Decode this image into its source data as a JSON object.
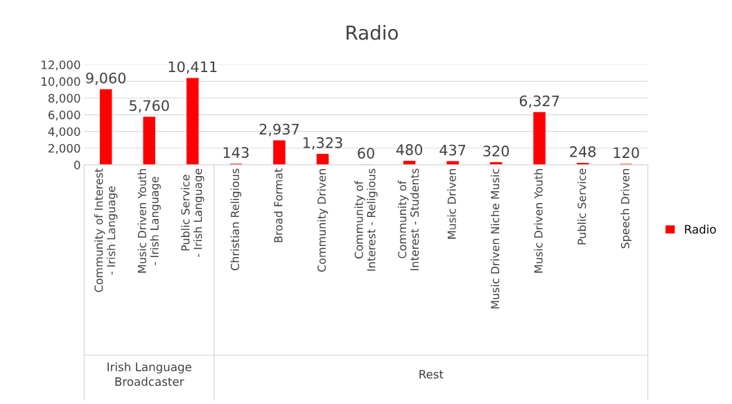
{
  "chart_data": {
    "type": "bar",
    "title": "Radio",
    "categories": [
      "Community of Interest - Irish Language",
      "Music Driven Youth - Irish Language",
      "Public Service - Irish Language",
      "Christian Religious",
      "Broad Format",
      "Community Driven",
      "Community of Interest - Religious",
      "Community of Interest - Students",
      "Music Driven",
      "Music Driven Niche Music",
      "Music Driven Youth",
      "Public Service",
      "Speech Driven"
    ],
    "series": [
      {
        "name": "Radio",
        "color": "#ff0000",
        "values": [
          9060,
          5760,
          10411,
          143,
          2937,
          1323,
          60,
          480,
          437,
          320,
          6327,
          248,
          120
        ],
        "value_labels": [
          "9,060",
          "5,760",
          "10,411",
          "143",
          "2,937",
          "1,323",
          "60",
          "480",
          "437",
          "320",
          "6,327",
          "248",
          "120"
        ]
      }
    ],
    "ylim": [
      0,
      12000
    ],
    "yticks": [
      0,
      {
        "value": 2000,
        "label": "2,000"
      },
      {
        "value": 4000,
        "label": "4,000"
      },
      {
        "value": 6000,
        "label": "6,000"
      },
      {
        "value": 8000,
        "label": "8,000"
      },
      {
        "value": 10000,
        "label": "10,000"
      },
      {
        "value": 12000,
        "label": "12,000"
      }
    ],
    "grid": "y",
    "legend": "right",
    "annotations": [
      "Irish Language Broadcaster",
      "Rest"
    ]
  }
}
